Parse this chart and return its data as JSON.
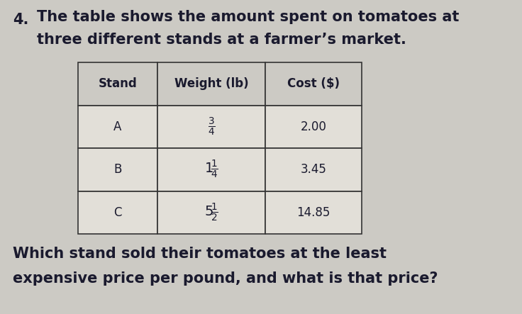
{
  "problem_number": "4.",
  "problem_text_line1": "The table shows the amount spent on tomatoes at",
  "problem_text_line2": "three different stands at a farmer’s market.",
  "col_headers": [
    "Stand",
    "Weight (lb)",
    "Cost ($)"
  ],
  "rows": [
    [
      "A",
      "3/4",
      "2.00"
    ],
    [
      "B",
      "1 1/4",
      "3.45"
    ],
    [
      "C",
      "5 1/2",
      "14.85"
    ]
  ],
  "question_line1": "Which stand sold their tomatoes at the least",
  "question_line2": "expensive price per pound, and what is that price?",
  "bg_color": "#cccac4",
  "table_bg_color": "#e2dfd8",
  "header_bg_color": "#cccac4",
  "border_color": "#333333",
  "text_color": "#1a1a2e",
  "header_font_size": 12,
  "body_font_size": 12,
  "question_font_size": 15,
  "problem_font_size": 15
}
